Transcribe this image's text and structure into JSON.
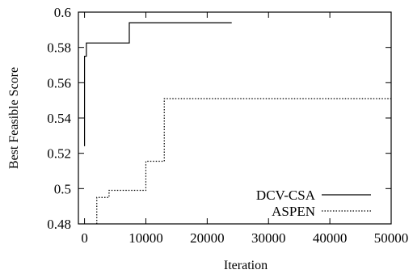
{
  "chart_data": {
    "type": "line",
    "title": "",
    "xlabel": "Iteration",
    "ylabel": "Best Feasible Score",
    "xlim": [
      -1000,
      50000
    ],
    "ylim": [
      0.48,
      0.6
    ],
    "xticks": [
      0,
      10000,
      20000,
      30000,
      40000,
      50000
    ],
    "yticks": [
      0.48,
      0.5,
      0.52,
      0.54,
      0.56,
      0.58,
      0.6
    ],
    "xtick_labels": [
      "0",
      "10000",
      "20000",
      "30000",
      "40000",
      "50000"
    ],
    "ytick_labels": [
      "0.48",
      "0.5",
      "0.52",
      "0.54",
      "0.56",
      "0.58",
      "0.6"
    ],
    "grid": false,
    "legend_position": "bottom-right",
    "series": [
      {
        "name": "DCV-CSA",
        "style": "solid",
        "color": "#000000",
        "x": [
          0,
          0,
          300,
          300,
          7300,
          7300,
          24000
        ],
        "y": [
          0.524,
          0.575,
          0.575,
          0.5825,
          0.5825,
          0.594,
          0.594
        ]
      },
      {
        "name": "ASPEN",
        "style": "dotted",
        "color": "#000000",
        "x": [
          2000,
          2000,
          4000,
          4000,
          10000,
          10000,
          13000,
          13000,
          50000
        ],
        "y": [
          0.48,
          0.495,
          0.495,
          0.499,
          0.499,
          0.5155,
          0.5155,
          0.551,
          0.551
        ]
      }
    ]
  }
}
